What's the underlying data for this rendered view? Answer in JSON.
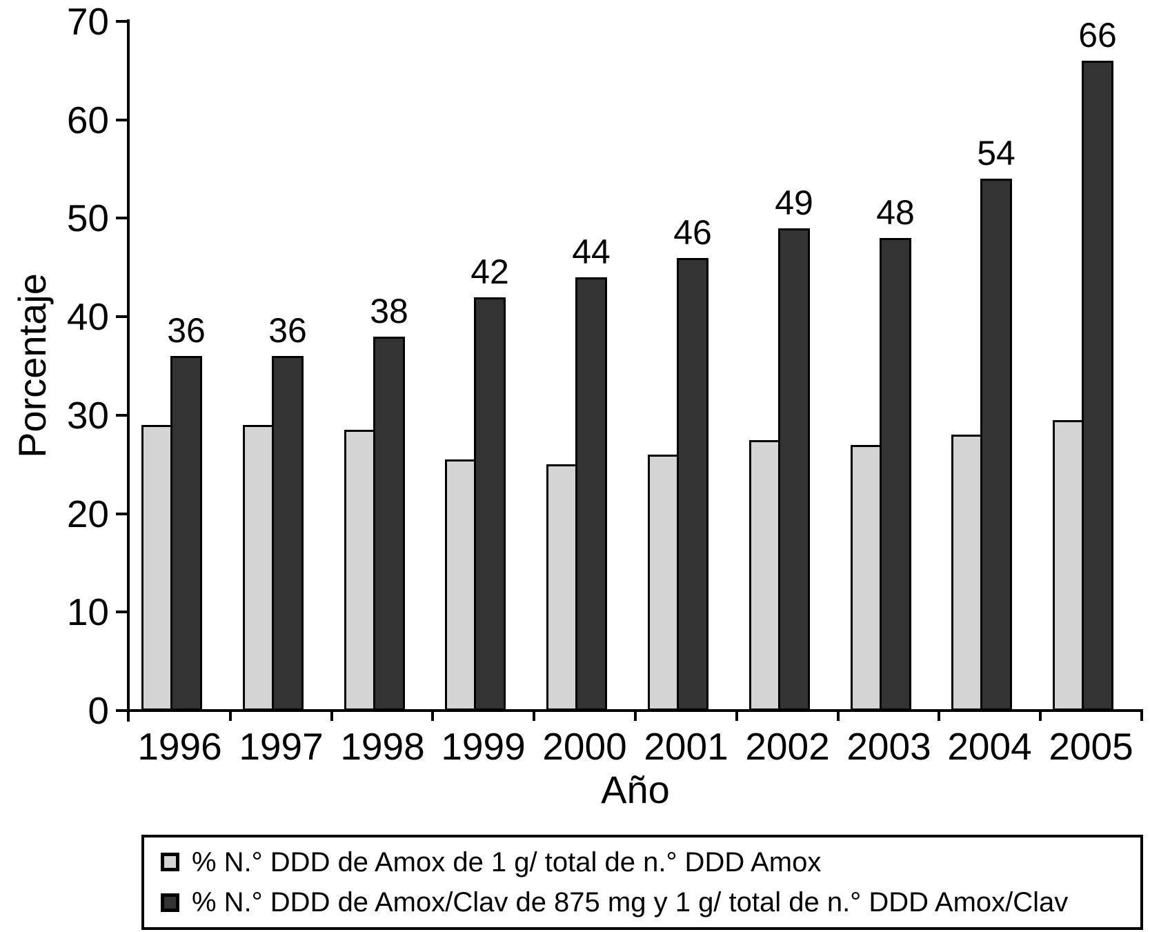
{
  "chart_data": {
    "type": "bar",
    "title": "",
    "categories": [
      "1996",
      "1997",
      "1998",
      "1999",
      "2000",
      "2001",
      "2002",
      "2003",
      "2004",
      "2005"
    ],
    "series": [
      {
        "name": "% N.° DDD de Amox de 1 g/ total de n.° DDD Amox",
        "color": "#d4d4d4",
        "values": [
          29,
          29,
          28.5,
          25.5,
          25,
          26,
          27.5,
          27,
          28,
          29.5
        ],
        "show_value_labels": false
      },
      {
        "name": "% N.° DDD de Amox/Clav de 875 mg y 1 g/ total de n.° DDD Amox/Clav",
        "color": "#333333",
        "values": [
          36,
          36,
          38,
          42,
          44,
          46,
          49,
          48,
          54,
          66
        ],
        "show_value_labels": true
      }
    ],
    "value_labels": [
      "36",
      "36",
      "38",
      "42",
      "44",
      "46",
      "49",
      "48",
      "54",
      "66"
    ],
    "xlabel": "Año",
    "ylabel": "Porcentaje",
    "ylim": [
      0,
      70
    ],
    "yticks": [
      0,
      10,
      20,
      30,
      40,
      50,
      60,
      70
    ],
    "grid": false,
    "legend_position": "bottom",
    "axis_color": "#000000"
  }
}
